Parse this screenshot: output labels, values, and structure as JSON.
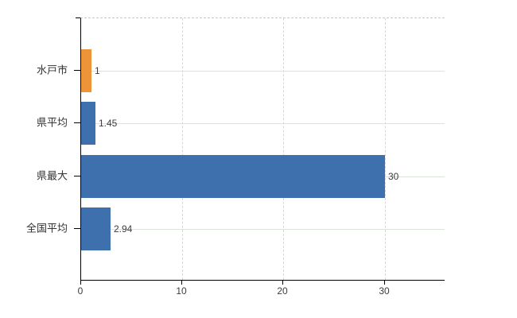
{
  "chart_data": {
    "type": "bar",
    "orientation": "horizontal",
    "title": "",
    "xlabel": "",
    "ylabel": "",
    "categories": [
      "水戸市",
      "県平均",
      "県最大",
      "全国平均"
    ],
    "values": [
      1,
      1.45,
      30,
      2.94
    ],
    "value_labels": [
      "1",
      "1.45",
      "30",
      "2.94"
    ],
    "bar_colors": [
      "#ED9438",
      "#3E70AD",
      "#3E70AD",
      "#3E70AD"
    ],
    "xlim": [
      0,
      36
    ],
    "xticks": [
      0,
      10,
      20,
      30
    ],
    "xtick_labels": [
      "0",
      "10",
      "20",
      "30"
    ],
    "grid": true,
    "legend": false,
    "highlight_color": "#ED9438",
    "default_bar_color": "#3E70AD"
  },
  "colors": {
    "background": "#ffffff",
    "axis": "#000000",
    "text": "#3c3c3c",
    "grid_horizontal": "#dbe3db",
    "grid_vertical": "#d6d6d6",
    "plot_top_border": "#c6c6c6"
  }
}
